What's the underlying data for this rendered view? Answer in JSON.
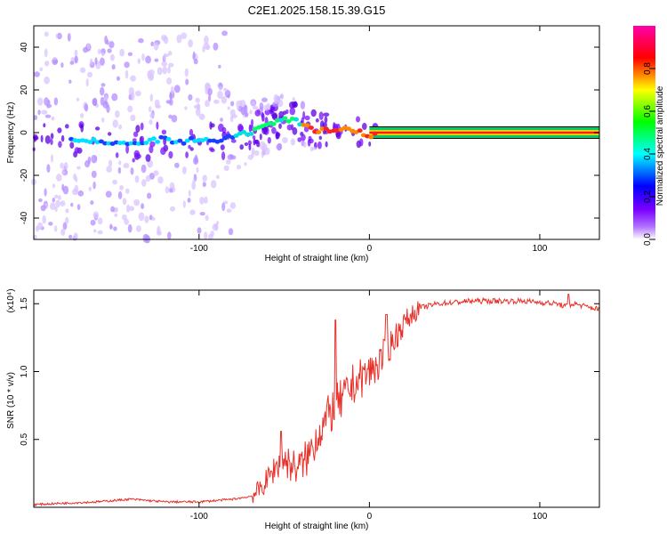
{
  "title": "C2E1.2025.158.15.39.G15",
  "chart_data": [
    {
      "type": "heatmap",
      "xlabel": "Height of straight line (km)",
      "ylabel": "Frequency (Hz)",
      "xlim": [
        -197,
        135
      ],
      "ylim": [
        -50,
        50
      ],
      "xticks": [
        -100,
        0,
        100
      ],
      "yticks": [
        -40,
        -20,
        0,
        20,
        40
      ],
      "xtick_labels": [
        "-100",
        "0",
        "100"
      ],
      "ytick_labels": [
        "-40",
        "-20",
        "0",
        "20",
        "40"
      ],
      "colorbar": {
        "label": "Normalized spectral amplitude",
        "range": [
          0,
          1
        ],
        "ticks": [
          "0.0",
          "0.2",
          "0.4",
          "0.6",
          "0.8"
        ],
        "colormap": [
          "#ffffff",
          "#8a00ff",
          "#0000ff",
          "#00ffff",
          "#00ff00",
          "#ffff00",
          "#ff0000",
          "#ff00ff"
        ]
      },
      "ridge": {
        "x": [
          -197,
          -180,
          -160,
          -150,
          -140,
          -130,
          -120,
          -110,
          -105,
          -100,
          -90,
          -80,
          -70,
          -60,
          -55,
          -50,
          -45,
          -40,
          -35,
          -30,
          -25,
          -20,
          -15,
          -10,
          -5,
          0,
          5,
          10,
          20,
          50,
          100,
          135
        ],
        "freq": [
          -2,
          -3,
          -4,
          -5,
          -6,
          -4,
          -3,
          -5,
          -3,
          -4,
          -4,
          -2,
          0,
          3,
          5,
          6,
          6,
          4,
          2,
          1,
          1,
          2,
          2,
          1,
          0,
          -2,
          0,
          0,
          0,
          0,
          0,
          0
        ]
      }
    },
    {
      "type": "line",
      "xlabel": "Height of straight line (km)",
      "ylabel": "SNR (10 * v/v)",
      "y_multiplier": "(x10⁴)",
      "xlim": [
        -197,
        135
      ],
      "ylim": [
        0,
        1.6
      ],
      "xticks": [
        -100,
        0,
        100
      ],
      "yticks": [
        0.5,
        1.0,
        1.5
      ],
      "xtick_labels": [
        "-100",
        "0",
        "100"
      ],
      "ytick_labels": [
        "0.5",
        "1.0",
        "1.5"
      ],
      "series": [
        {
          "name": "SNR",
          "color": "#e8312a",
          "x": [
            -197,
            -180,
            -160,
            -150,
            -140,
            -130,
            -120,
            -100,
            -90,
            -80,
            -70,
            -65,
            -60,
            -55,
            -50,
            -45,
            -40,
            -35,
            -30,
            -25,
            -20,
            -15,
            -10,
            -5,
            0,
            5,
            10,
            15,
            20,
            25,
            30,
            40,
            50,
            60,
            70,
            80,
            90,
            100,
            110,
            115,
            120,
            130,
            135
          ],
          "y": [
            0.02,
            0.03,
            0.04,
            0.05,
            0.06,
            0.05,
            0.04,
            0.04,
            0.05,
            0.06,
            0.08,
            0.12,
            0.2,
            0.3,
            0.35,
            0.3,
            0.3,
            0.4,
            0.55,
            0.65,
            0.75,
            0.8,
            0.9,
            0.95,
            1.0,
            1.05,
            1.15,
            1.25,
            1.35,
            1.42,
            1.47,
            1.5,
            1.51,
            1.52,
            1.52,
            1.52,
            1.52,
            1.51,
            1.5,
            1.48,
            1.5,
            1.47,
            1.46
          ]
        }
      ],
      "spikes": [
        {
          "x": -52,
          "y": 0.56
        },
        {
          "x": -20,
          "y": 1.38
        },
        {
          "x": 10,
          "y": 1.42
        },
        {
          "x": 117,
          "y": 1.57
        }
      ]
    }
  ]
}
